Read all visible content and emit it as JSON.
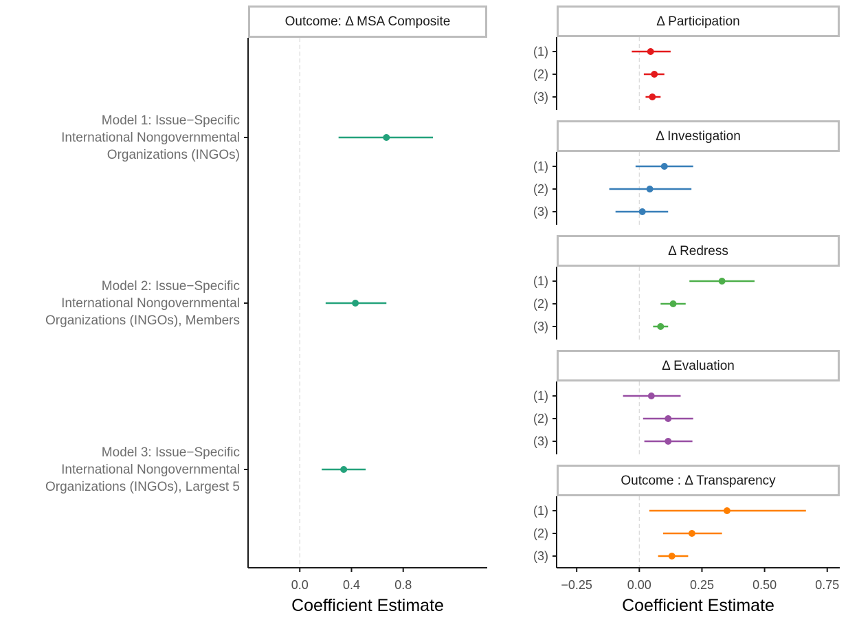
{
  "colors": {
    "composite": "#23A27B",
    "participation": "#E41A1C",
    "investigation": "#377EB8",
    "redress": "#4DAF4A",
    "evaluation": "#984EA3",
    "transparency": "#FF7F00",
    "strip_fill": "#FFFFFF",
    "strip_border": "#BDBDBD",
    "axis": "#1A1A1A",
    "tick_label": "#4D4D4D",
    "zero_line": "#D9D9D9"
  },
  "chart_data": [
    {
      "type": "forest",
      "panel_title": "Outcome: Δ MSA Composite",
      "xlabel": "Coefficient Estimate",
      "xlim": [
        -0.4,
        1.45
      ],
      "xticks": [
        "0.0",
        "0.4",
        "0.8"
      ],
      "xtick_values": [
        0.0,
        0.4,
        0.8
      ],
      "zero_line": true,
      "categories": [
        [
          "Model 1: Issue−Specific",
          "International Nongovernmental",
          "Organizations (INGOs)"
        ],
        [
          "Model 2: Issue−Specific",
          "International Nongovernmental",
          "Organizations (INGOs), Members"
        ],
        [
          "Model 3: Issue−Specific",
          "International Nongovernmental",
          "Organizations (INGOs), Largest 5"
        ]
      ],
      "estimates": [
        0.67,
        0.43,
        0.34
      ],
      "lower": [
        0.3,
        0.2,
        0.17
      ],
      "upper": [
        1.03,
        0.67,
        0.51
      ]
    },
    {
      "type": "forest_facets",
      "xlabel": "Coefficient Estimate",
      "xlim": [
        -0.33,
        0.8
      ],
      "xticks": [
        "−0.25",
        "0.00",
        "0.25",
        "0.50",
        "0.75"
      ],
      "xtick_values": [
        -0.25,
        0.0,
        0.25,
        0.5,
        0.75
      ],
      "zero_line": true,
      "row_labels": [
        "(1)",
        "(2)",
        "(3)"
      ],
      "facets": [
        {
          "title": "Δ Participation",
          "color_key": "participation",
          "estimates": [
            0.045,
            0.06,
            0.052
          ],
          "lower": [
            -0.03,
            0.018,
            0.025
          ],
          "upper": [
            0.125,
            0.1,
            0.085
          ]
        },
        {
          "title": "Δ Investigation",
          "color_key": "investigation",
          "estimates": [
            0.1,
            0.042,
            0.012
          ],
          "lower": [
            -0.015,
            -0.12,
            -0.095
          ],
          "upper": [
            0.215,
            0.208,
            0.115
          ]
        },
        {
          "title": "Δ Redress",
          "color_key": "redress",
          "estimates": [
            0.33,
            0.135,
            0.085
          ],
          "lower": [
            0.2,
            0.085,
            0.055
          ],
          "upper": [
            0.46,
            0.185,
            0.115
          ]
        },
        {
          "title": "Δ Evaluation",
          "color_key": "evaluation",
          "estimates": [
            0.048,
            0.115,
            0.115
          ],
          "lower": [
            -0.065,
            0.015,
            0.02
          ],
          "upper": [
            0.165,
            0.215,
            0.212
          ]
        },
        {
          "title": "Outcome : Δ Transparency",
          "color_key": "transparency",
          "estimates": [
            0.35,
            0.21,
            0.13
          ],
          "lower": [
            0.04,
            0.095,
            0.075
          ],
          "upper": [
            0.665,
            0.33,
            0.195
          ]
        }
      ]
    }
  ]
}
